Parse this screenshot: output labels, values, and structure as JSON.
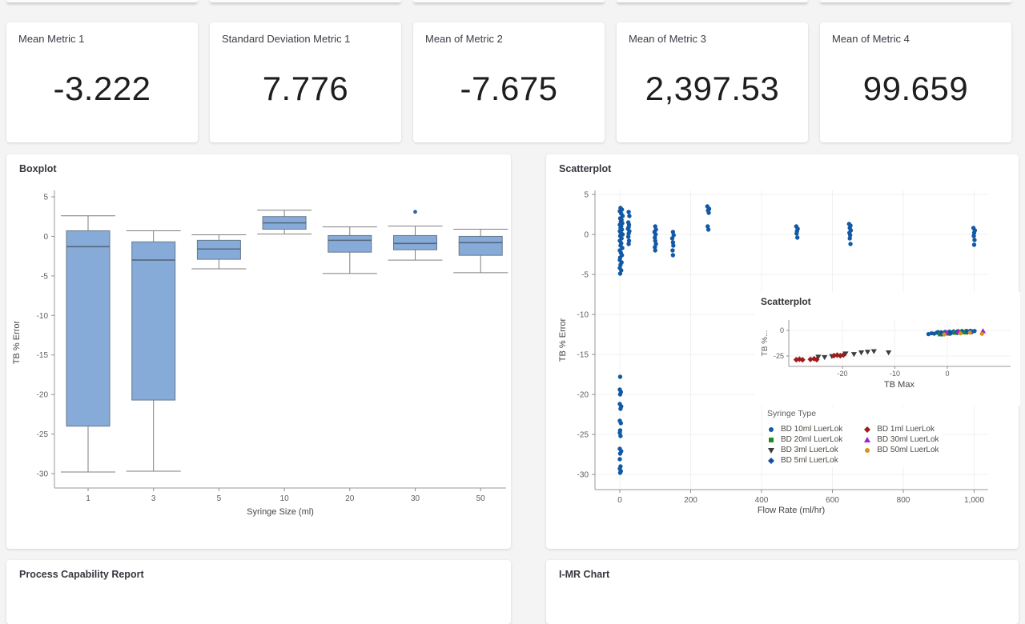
{
  "page": {
    "background": "#f4f4f5"
  },
  "kpi_cards": [
    {
      "label": "Mean Metric 1",
      "value": "-3.222"
    },
    {
      "label": "Standard Deviation Metric 1",
      "value": "7.776"
    },
    {
      "label": "Mean of Metric 2",
      "value": "-7.675"
    },
    {
      "label": "Mean of Metric 3",
      "value": "2,397.53"
    },
    {
      "label": "Mean of Metric 4",
      "value": "99.659"
    }
  ],
  "panels": {
    "boxplot": {
      "title": "Boxplot"
    },
    "scatterplot": {
      "title": "Scatterplot"
    },
    "process_capability": {
      "title": "Process Capability Report"
    },
    "imr": {
      "title": "I-MR Chart"
    }
  },
  "colors": {
    "accent_blue": "#1259a6",
    "box_fill": "#87abd8",
    "box_stroke": "#667789",
    "axis": "#9a9a9a",
    "tick_label": "#5d5d5d",
    "grid": "#f0f0f0"
  },
  "chart_data": [
    {
      "id": "boxplot",
      "type": "boxplot",
      "title": "Boxplot",
      "xlabel": "Syringe Size (ml)",
      "ylabel": "TB % Error",
      "categories": [
        "1",
        "3",
        "5",
        "10",
        "20",
        "30",
        "50"
      ],
      "yticks": [
        5,
        0,
        -5,
        -10,
        -15,
        -20,
        -25,
        -30
      ],
      "ylim": [
        -32,
        6
      ],
      "grid": false,
      "box_fill": "#87abd8",
      "box_stroke": "#667789",
      "boxes": [
        {
          "category": "1",
          "whisker_low": -29.8,
          "q1": -24.0,
          "median": -1.3,
          "q3": 0.7,
          "whisker_high": 2.6,
          "outliers": []
        },
        {
          "category": "3",
          "whisker_low": -29.7,
          "q1": -20.7,
          "median": -3.0,
          "q3": -0.7,
          "whisker_high": 0.7,
          "outliers": []
        },
        {
          "category": "5",
          "whisker_low": -4.1,
          "q1": -2.9,
          "median": -1.6,
          "q3": -0.5,
          "whisker_high": 0.2,
          "outliers": []
        },
        {
          "category": "10",
          "whisker_low": 0.3,
          "q1": 0.9,
          "median": 1.7,
          "q3": 2.5,
          "whisker_high": 3.3,
          "outliers": []
        },
        {
          "category": "20",
          "whisker_low": -4.7,
          "q1": -2.0,
          "median": -0.5,
          "q3": 0.1,
          "whisker_high": 1.2,
          "outliers": []
        },
        {
          "category": "30",
          "whisker_low": -3.0,
          "q1": -1.7,
          "median": -0.9,
          "q3": 0.1,
          "whisker_high": 1.3,
          "outliers": [
            3.1
          ]
        },
        {
          "category": "50",
          "whisker_low": -4.6,
          "q1": -2.4,
          "median": -0.8,
          "q3": 0.0,
          "whisker_high": 0.9,
          "outliers": []
        }
      ]
    },
    {
      "id": "scatter-main",
      "type": "scatter",
      "title": "Scatterplot",
      "xlabel": "Flow Rate (ml/hr)",
      "ylabel": "TB % Error",
      "xticks": [
        0,
        200,
        400,
        600,
        800,
        1000
      ],
      "xtick_labels": [
        "0",
        "200",
        "400",
        "600",
        "800",
        "1,000"
      ],
      "yticks": [
        5,
        0,
        -5,
        -10,
        -15,
        -20,
        -25,
        -30
      ],
      "xlim": [
        -70,
        1040
      ],
      "ylim": [
        -32,
        5.5
      ],
      "grid": true,
      "point_color": "#1259a6",
      "points": [
        [
          2,
          3.3
        ],
        [
          6,
          3.1
        ],
        [
          0,
          2.9
        ],
        [
          4,
          2.6
        ],
        [
          8,
          2.3
        ],
        [
          1,
          2.0
        ],
        [
          5,
          1.8
        ],
        [
          3,
          1.6
        ],
        [
          7,
          1.4
        ],
        [
          0,
          1.2
        ],
        [
          4,
          1.0
        ],
        [
          2,
          0.8
        ],
        [
          6,
          0.6
        ],
        [
          0,
          0.4
        ],
        [
          3,
          0.2
        ],
        [
          8,
          0.0
        ],
        [
          1,
          -0.2
        ],
        [
          5,
          -0.5
        ],
        [
          0,
          -0.8
        ],
        [
          4,
          -1.1
        ],
        [
          2,
          -1.4
        ],
        [
          7,
          -1.7
        ],
        [
          0,
          -2.0
        ],
        [
          3,
          -2.3
        ],
        [
          6,
          -2.6
        ],
        [
          1,
          -2.9
        ],
        [
          0,
          -3.2
        ],
        [
          5,
          -3.5
        ],
        [
          2,
          -3.8
        ],
        [
          0,
          -4.2
        ],
        [
          4,
          -4.5
        ],
        [
          1,
          -4.9
        ],
        [
          25,
          2.8
        ],
        [
          27,
          2.3
        ],
        [
          24,
          1.5
        ],
        [
          26,
          1.2
        ],
        [
          25,
          0.9
        ],
        [
          23,
          0.7
        ],
        [
          27,
          0.4
        ],
        [
          25,
          0.1
        ],
        [
          24,
          -0.3
        ],
        [
          26,
          -0.8
        ],
        [
          25,
          -1.2
        ],
        [
          100,
          1.0
        ],
        [
          102,
          0.6
        ],
        [
          98,
          0.3
        ],
        [
          101,
          0.0
        ],
        [
          99,
          -0.4
        ],
        [
          100,
          -0.8
        ],
        [
          102,
          -1.2
        ],
        [
          99,
          -1.6
        ],
        [
          100,
          -2.0
        ],
        [
          150,
          0.3
        ],
        [
          152,
          -0.1
        ],
        [
          148,
          -0.5
        ],
        [
          150,
          -1.0
        ],
        [
          151,
          -1.4
        ],
        [
          149,
          -2.0
        ],
        [
          150,
          -2.6
        ],
        [
          247,
          3.5
        ],
        [
          252,
          3.2
        ],
        [
          249,
          3.0
        ],
        [
          251,
          2.7
        ],
        [
          248,
          1.0
        ],
        [
          250,
          0.6
        ],
        [
          498,
          1.0
        ],
        [
          502,
          0.7
        ],
        [
          500,
          0.4
        ],
        [
          499,
          0.1
        ],
        [
          501,
          -0.4
        ],
        [
          647,
          1.3
        ],
        [
          651,
          1.1
        ],
        [
          649,
          0.8
        ],
        [
          652,
          0.5
        ],
        [
          648,
          0.2
        ],
        [
          650,
          -0.1
        ],
        [
          649,
          -0.5
        ],
        [
          651,
          -1.2
        ],
        [
          998,
          0.8
        ],
        [
          1002,
          0.5
        ],
        [
          1000,
          0.2
        ],
        [
          999,
          -0.2
        ],
        [
          1001,
          -0.7
        ],
        [
          1000,
          -1.3
        ],
        [
          1,
          -17.8
        ],
        [
          0,
          -19.4
        ],
        [
          3,
          -19.7
        ],
        [
          1,
          -20.0
        ],
        [
          0,
          -21.2
        ],
        [
          4,
          -21.5
        ],
        [
          2,
          -21.8
        ],
        [
          0,
          -23.3
        ],
        [
          3,
          -23.6
        ],
        [
          1,
          -24.5
        ],
        [
          0,
          -24.8
        ],
        [
          2,
          -25.2
        ],
        [
          0,
          -26.8
        ],
        [
          4,
          -27.1
        ],
        [
          1,
          -27.4
        ],
        [
          0,
          -28.1
        ],
        [
          2,
          -29.0
        ],
        [
          0,
          -29.3
        ],
        [
          3,
          -29.6
        ],
        [
          1,
          -29.8
        ]
      ]
    },
    {
      "id": "scatter-inset",
      "type": "scatter",
      "title": "Scatterplot",
      "xlabel": "TB Max",
      "ylabel": "TB %...",
      "xticks": [
        -20,
        -10,
        0
      ],
      "yticks": [
        0,
        -25
      ],
      "grid": true,
      "series": [
        {
          "name": "BD 10ml LuerLok",
          "marker": "circle",
          "color": "#1259a6",
          "points": [
            [
              -3.6,
              -3.6
            ],
            [
              -3.0,
              -2.8
            ],
            [
              -2.5,
              -3.2
            ],
            [
              -2.0,
              -2.2
            ],
            [
              -1.6,
              -3.0
            ],
            [
              -1.2,
              -1.8
            ],
            [
              -0.8,
              -2.6
            ],
            [
              -0.4,
              -1.4
            ],
            [
              0,
              -2.4
            ],
            [
              0.4,
              -1.2
            ],
            [
              0.8,
              -2.0
            ],
            [
              1.2,
              -1.0
            ],
            [
              1.6,
              -1.8
            ],
            [
              2.0,
              -0.8
            ],
            [
              2.4,
              -1.6
            ],
            [
              2.8,
              -0.6
            ],
            [
              3.2,
              -1.4
            ],
            [
              3.6,
              -0.5
            ],
            [
              4.0,
              -1.2
            ],
            [
              4.4,
              -0.4
            ],
            [
              4.8,
              -1.0
            ],
            [
              5.2,
              -0.6
            ],
            [
              -1.8,
              -1.6
            ],
            [
              0.6,
              -3.0
            ],
            [
              2.6,
              -2.4
            ],
            [
              4.6,
              -1.8
            ]
          ]
        },
        {
          "name": "BD 20ml LuerLok",
          "marker": "square",
          "color": "#1f8b24",
          "points": [
            [
              -1.4,
              -3.8
            ],
            [
              0.2,
              -3.1
            ],
            [
              1.4,
              -2.3
            ],
            [
              2.2,
              -1.5
            ],
            [
              3.4,
              -2.0
            ]
          ]
        },
        {
          "name": "BD 3ml LuerLok",
          "marker": "triangle-down",
          "color": "#3d3d3d",
          "points": [
            [
              -24.6,
              -25.8
            ],
            [
              -23.4,
              -26.2
            ],
            [
              -22.0,
              -25.2
            ],
            [
              -19.4,
              -22.6
            ],
            [
              -17.8,
              -23.2
            ],
            [
              -16.4,
              -21.6
            ],
            [
              -15.2,
              -21.0
            ],
            [
              -14.0,
              -20.4
            ],
            [
              -11.2,
              -21.6
            ]
          ]
        },
        {
          "name": "BD 5ml LuerLok",
          "marker": "diamond",
          "color": "#1450a0",
          "points": [
            [
              -1.0,
              -3.4
            ],
            [
              0.5,
              -2.8
            ],
            [
              1.9,
              -2.1
            ],
            [
              3.9,
              -1.5
            ]
          ]
        },
        {
          "name": "BD 1ml LuerLok",
          "marker": "diamond",
          "color": "#9e1b1b",
          "points": [
            [
              -28.8,
              -28.6
            ],
            [
              -28.2,
              -28.1
            ],
            [
              -27.6,
              -28.7
            ],
            [
              -26.1,
              -28.3
            ],
            [
              -25.4,
              -27.7
            ],
            [
              -24.9,
              -28.5
            ],
            [
              -21.6,
              -24.6
            ],
            [
              -21.0,
              -24.1
            ],
            [
              -20.4,
              -24.7
            ],
            [
              -19.8,
              -23.9
            ]
          ]
        },
        {
          "name": "BD 30ml LuerLok",
          "marker": "triangle-up",
          "color": "#a21fd0",
          "points": [
            [
              -0.2,
              -2.0
            ],
            [
              2.1,
              -1.1
            ],
            [
              6.8,
              -0.7
            ]
          ]
        },
        {
          "name": "BD 50ml LuerLok",
          "marker": "circle",
          "color": "#dd8f1e",
          "points": [
            [
              -0.6,
              -3.9
            ],
            [
              2.5,
              -2.9
            ],
            [
              4.3,
              -2.1
            ],
            [
              6.6,
              -3.3
            ]
          ]
        }
      ],
      "legend": {
        "title": "Syringe Type",
        "columns": [
          [
            {
              "label": "BD 10ml LuerLok",
              "marker": "circle",
              "color": "#1259a6"
            },
            {
              "label": "BD 20ml LuerLok",
              "marker": "square",
              "color": "#1f8b24"
            },
            {
              "label": "BD 3ml LuerLok",
              "marker": "triangle-down",
              "color": "#3d3d3d"
            },
            {
              "label": "BD 5ml LuerLok",
              "marker": "diamond",
              "color": "#1450a0"
            }
          ],
          [
            {
              "label": "BD 1ml LuerLok",
              "marker": "diamond",
              "color": "#9e1b1b"
            },
            {
              "label": "BD 30ml LuerLok",
              "marker": "triangle-up",
              "color": "#a21fd0"
            },
            {
              "label": "BD 50ml LuerLok",
              "marker": "circle",
              "color": "#dd8f1e"
            }
          ]
        ]
      }
    }
  ]
}
